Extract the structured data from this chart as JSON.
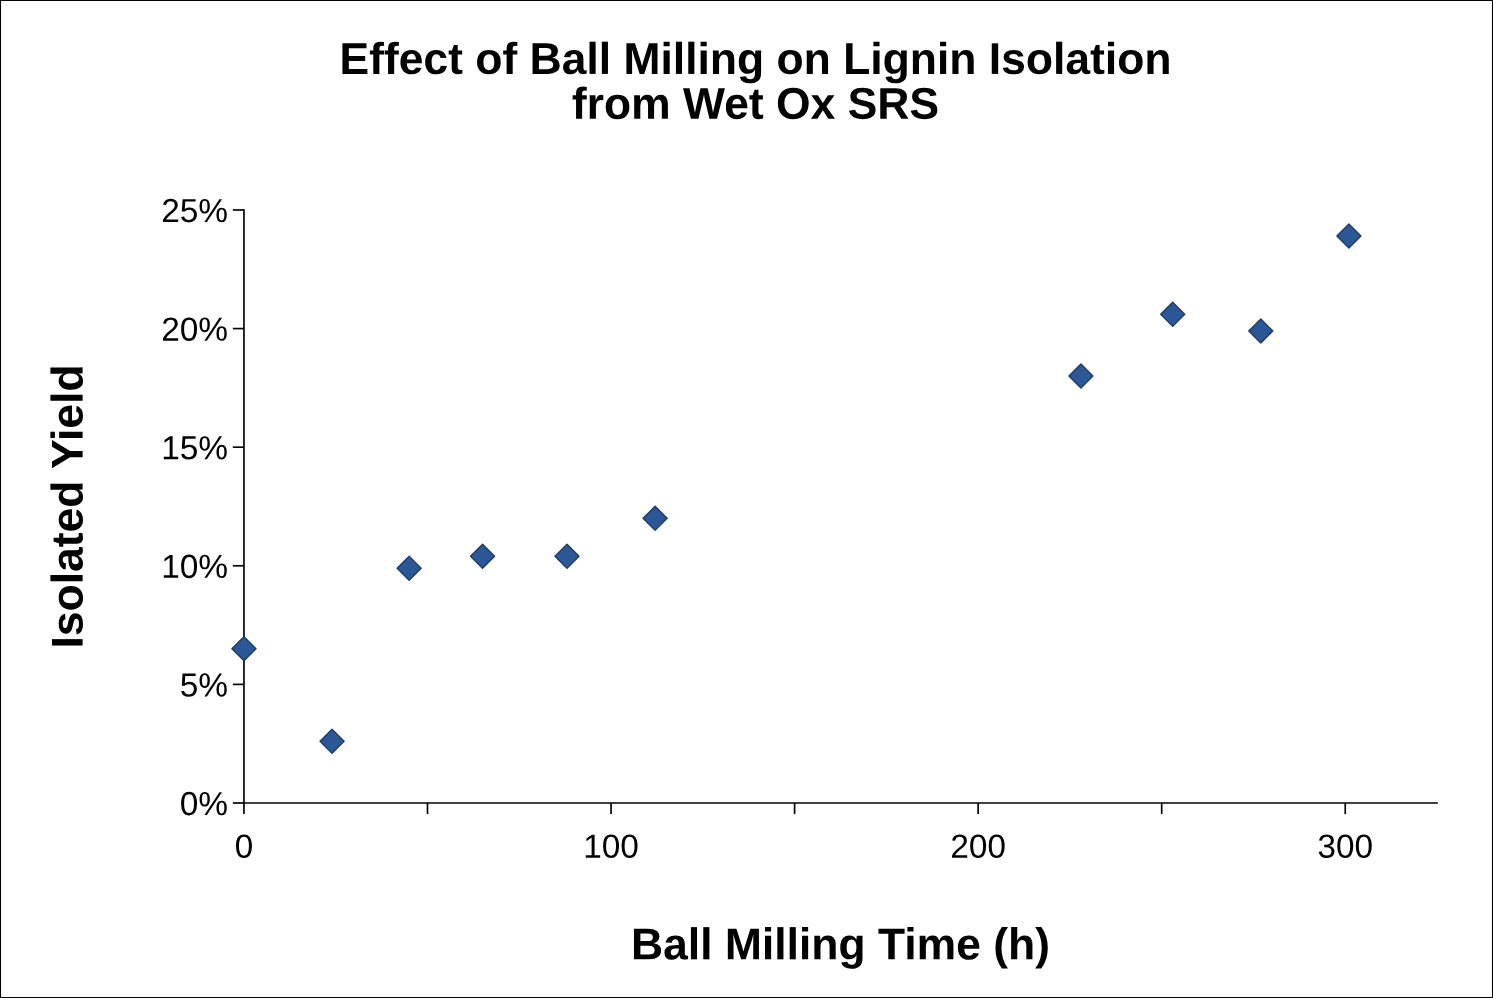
{
  "chart_data": {
    "type": "scatter",
    "title": "Effect of Ball Milling on Lignin Isolation\nfrom Wet Ox SRS",
    "xlabel": "Ball Milling Time (h)",
    "ylabel": "Isolated Yield",
    "x": [
      0,
      24,
      45,
      65,
      88,
      112,
      228,
      253,
      277,
      301
    ],
    "series": [
      {
        "color": "#2b5797",
        "values": [
          6.5,
          2.6,
          9.9,
          10.4,
          10.4,
          12.0,
          18.0,
          20.6,
          19.9,
          23.9
        ]
      }
    ],
    "marker": "diamond",
    "grid": false,
    "legend": false,
    "xlim": [
      0,
      325
    ],
    "xticks": [
      0,
      {
        "value": 50,
        "label": null
      },
      100,
      {
        "value": 150,
        "label": null
      },
      200,
      {
        "value": 250,
        "label": null
      },
      300
    ],
    "ylim": [
      0,
      25
    ],
    "yticks": [
      {
        "value": 0,
        "label": "0%"
      },
      {
        "value": 5,
        "label": "5%"
      },
      {
        "value": 10,
        "label": "10%"
      },
      {
        "value": 15,
        "label": "15%"
      },
      {
        "value": 20,
        "label": "20%"
      },
      {
        "value": 25,
        "label": "25%"
      }
    ]
  }
}
